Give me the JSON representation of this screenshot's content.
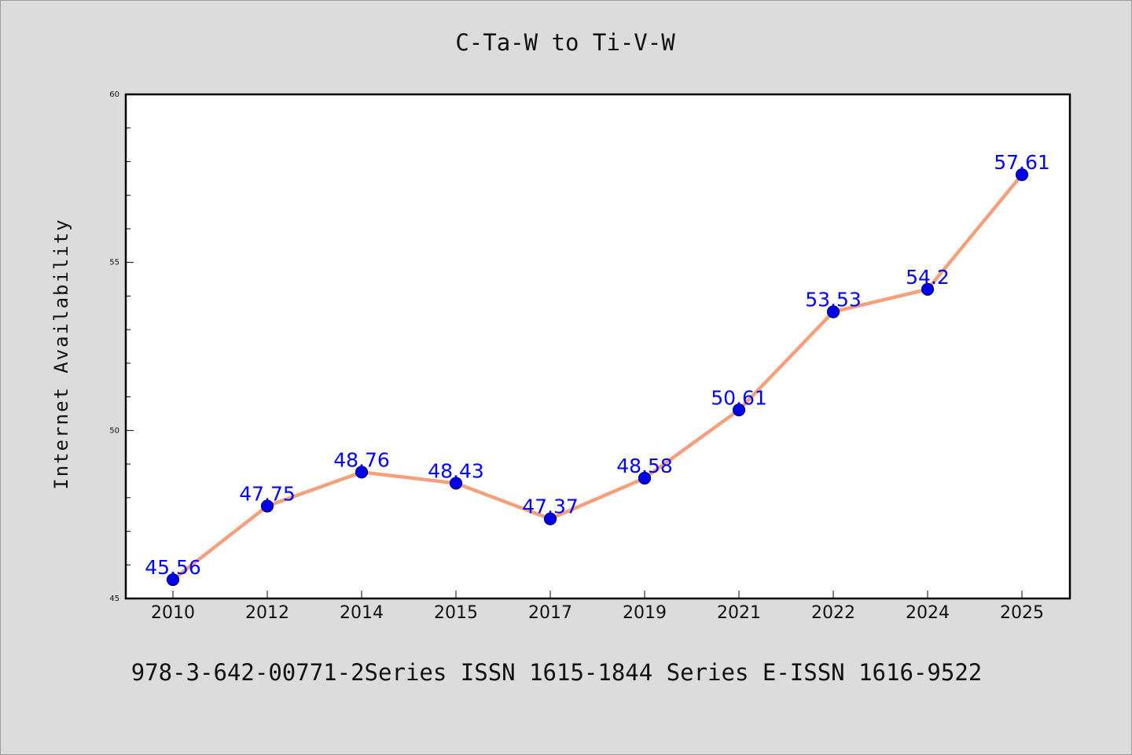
{
  "chart_data": {
    "type": "line",
    "title": "C-Ta-W to Ti-V-W",
    "xlabel": "",
    "ylabel": "Internet Availability",
    "categories": [
      "2010",
      "2012",
      "2014",
      "2015",
      "2017",
      "2019",
      "2021",
      "2022",
      "2024",
      "2025"
    ],
    "values": [
      45.56,
      47.75,
      48.76,
      48.43,
      47.37,
      48.58,
      50.61,
      53.53,
      54.2,
      57.61
    ],
    "data_labels": [
      "45.56",
      "47.75",
      "48.76",
      "48.43",
      "47.37",
      "48.58",
      "50.61",
      "53.53",
      "54.2",
      "57.61"
    ],
    "ylim": [
      45,
      60
    ],
    "yticks": [
      45,
      50,
      55,
      60
    ],
    "ytick_labels": [
      "45",
      "50",
      "55",
      "60"
    ],
    "grid": false,
    "legend": "none",
    "colors": {
      "line": "#f4a07c",
      "marker": "#0000ee",
      "marker_edge": "#00006e",
      "label": "#0000ff",
      "background": "#dcdcdc",
      "plot_background": "#ffffff"
    }
  },
  "footer": {
    "text": "978-3-642-00771-2Series ISSN 1615-1844 Series E-ISSN 1616-9522"
  }
}
